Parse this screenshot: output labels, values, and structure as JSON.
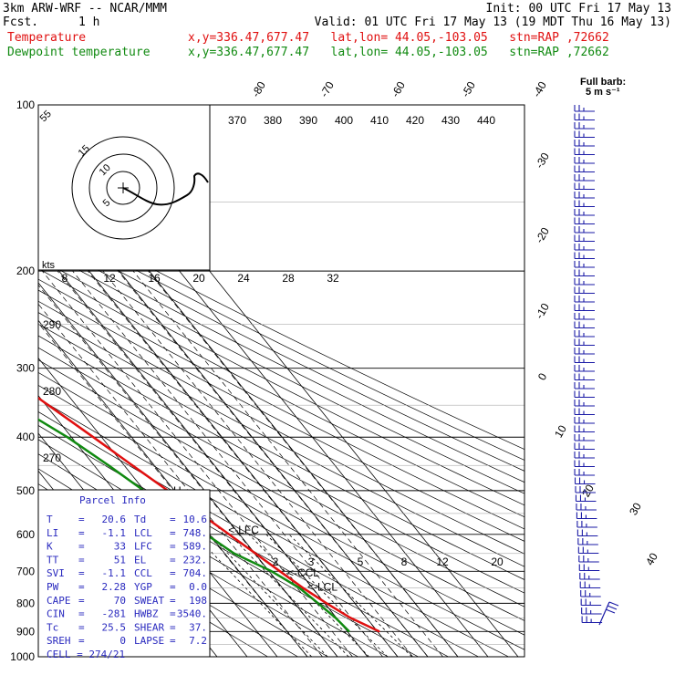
{
  "header": {
    "model": "3km ARW-WRF -- NCAR/MMM",
    "fcst_label": "Fcst.",
    "fcst_value": "1 h",
    "init": "Init: 00 UTC Fri 17 May 13",
    "valid": "Valid: 01 UTC Fri 17 May 13 (19 MDT Thu 16 May 13)",
    "temp_line": "Temperature",
    "dew_line": "Dewpoint temperature",
    "loc_info": "x,y=336.47,677.47   lat,lon= 44.05,-103.05   stn=RAP ,72662"
  },
  "colors": {
    "temperature": "#e01010",
    "dewpoint": "#118a11",
    "hodograph": "#000000",
    "barbs": "#1a1aa6",
    "panel_text": "#2a2abf"
  },
  "chart_data": {
    "type": "line",
    "subtype": "skew-t log-p",
    "pressure_levels": [
      100,
      200,
      300,
      400,
      500,
      600,
      700,
      800,
      900,
      1000
    ],
    "pressure_ticks": [
      "100",
      "200",
      "300",
      "400",
      "500",
      "600",
      "700",
      "800",
      "900",
      "1000"
    ],
    "isotherm_labels": [
      "-80",
      "-70",
      "-60",
      "-50",
      "-40",
      "-30",
      "-20",
      "-10",
      "0",
      "10",
      "20",
      "30",
      "40"
    ],
    "theta_labels": [
      "370",
      "380",
      "390",
      "400",
      "410",
      "420",
      "430",
      "440"
    ],
    "theta_side_labels": [
      "290",
      "280",
      "270"
    ],
    "mixing_ratio_labels": [
      "2",
      "3",
      "5",
      "8",
      "12",
      "20"
    ],
    "wind_speed_labels": [
      "8",
      "12",
      "16",
      "20",
      "24",
      "28",
      "32"
    ],
    "wind_unit_label": "kts",
    "full_barb_label": "Full barb:",
    "full_barb_value": "5 m s⁻¹",
    "series": [
      {
        "name": "Temperature",
        "points": [
          [
            900,
            20.6
          ],
          [
            850,
            14.6
          ],
          [
            800,
            10.6
          ],
          [
            750,
            6.8
          ],
          [
            700,
            3.6
          ],
          [
            650,
            0.2
          ],
          [
            600,
            -3.5
          ],
          [
            550,
            -7.6
          ],
          [
            500,
            -12.2
          ],
          [
            450,
            -17.3
          ],
          [
            400,
            -22.8
          ],
          [
            350,
            -29.2
          ],
          [
            300,
            -36.6
          ],
          [
            250,
            -44.8
          ],
          [
            220,
            -50.7
          ],
          [
            200,
            -54.2
          ],
          [
            180,
            -55.5
          ],
          [
            160,
            -55.2
          ],
          [
            140,
            -54.6
          ],
          [
            120,
            -54.2
          ],
          [
            100,
            -55.6
          ]
        ]
      },
      {
        "name": "Dewpoint temperature",
        "points": [
          [
            900,
            10.6
          ],
          [
            850,
            9.7
          ],
          [
            800,
            7.8
          ],
          [
            750,
            5.6
          ],
          [
            700,
            0.8
          ],
          [
            650,
            -6.9
          ],
          [
            600,
            -11.1
          ],
          [
            550,
            -15.5
          ],
          [
            500,
            -20.2
          ],
          [
            450,
            -25.2
          ],
          [
            400,
            -31.4
          ],
          [
            350,
            -40.4
          ],
          [
            300,
            -50.5
          ],
          [
            250,
            -58.8
          ],
          [
            200,
            -67.3
          ],
          [
            180,
            -71.3
          ],
          [
            160,
            -74.4
          ],
          [
            140,
            -78.3
          ],
          [
            120,
            -81.7
          ],
          [
            100,
            -86.4
          ]
        ]
      }
    ],
    "annotations": [
      {
        "text": "EL",
        "p": 232
      },
      {
        "text": "LFC",
        "p": 589
      },
      {
        "text": "CCL",
        "p": 704
      },
      {
        "text": "LCL",
        "p": 748
      },
      {
        "text": "H",
        "p": 500
      }
    ],
    "hodograph_labels": [
      "5",
      "10",
      "15"
    ]
  },
  "parcel_info": {
    "title": "Parcel Info",
    "rows": [
      [
        "T",
        "20.6",
        "Td",
        "10.6"
      ],
      [
        "LI",
        "-1.1",
        "LCL",
        "748."
      ],
      [
        "K",
        "33",
        "LFC",
        "589."
      ],
      [
        "TT",
        "51",
        "EL",
        "232."
      ],
      [
        "SVI",
        "-1.1",
        "CCL",
        "704."
      ],
      [
        "PW",
        "2.28",
        "YGP",
        "0.0"
      ],
      [
        "CAPE",
        "70",
        "SWEAT",
        "198"
      ],
      [
        "CIN",
        "-281",
        "HWBZ",
        "3540."
      ],
      [
        "Tc",
        "25.5",
        "SHEAR",
        "37."
      ],
      [
        "SREH",
        "0",
        "LAPSE",
        "7.2"
      ],
      [
        "CELL",
        "274/21",
        "",
        ""
      ]
    ]
  }
}
